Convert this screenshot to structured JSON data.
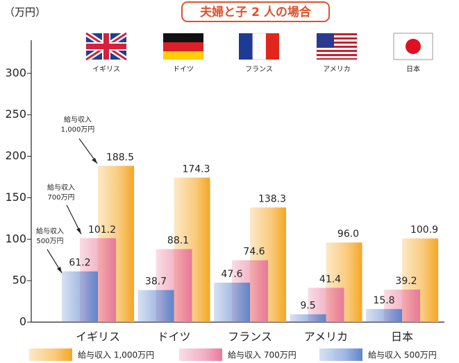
{
  "chart_data": {
    "type": "bar",
    "title": "夫婦と子 2 人の場合",
    "y_unit": "（万円）",
    "categories": [
      "イギリス",
      "ドイツ",
      "フランス",
      "アメリカ",
      "日本"
    ],
    "series": [
      {
        "name": "給与収入 1,000万円",
        "color": "#f5a623",
        "values": [
          188.5,
          174.3,
          138.3,
          96.0,
          100.9
        ],
        "value_labels": [
          "188.5",
          "174.3",
          "138.3",
          "96.0",
          "100.9"
        ]
      },
      {
        "name": "給与収入 700万円",
        "color": "#e8799c",
        "values": [
          101.2,
          88.1,
          74.6,
          41.4,
          39.2
        ],
        "value_labels": [
          "101.2",
          "88.1",
          "74.6",
          "41.4",
          "39.2"
        ]
      },
      {
        "name": "給与収入 500万円",
        "color": "#5f86cc",
        "values": [
          61.2,
          38.7,
          47.6,
          9.5,
          15.8
        ],
        "value_labels": [
          "61.2",
          "38.7",
          "47.6",
          "9.5",
          "15.8"
        ]
      }
    ],
    "annotations": [
      [
        "給与収入",
        "1,000万円"
      ],
      [
        "給与収入",
        "700万円"
      ],
      [
        "給与収入",
        "500万円"
      ]
    ],
    "ylim": [
      0,
      340
    ],
    "yticks": [
      0,
      50,
      100,
      150,
      200,
      250,
      300
    ],
    "grid": false
  }
}
